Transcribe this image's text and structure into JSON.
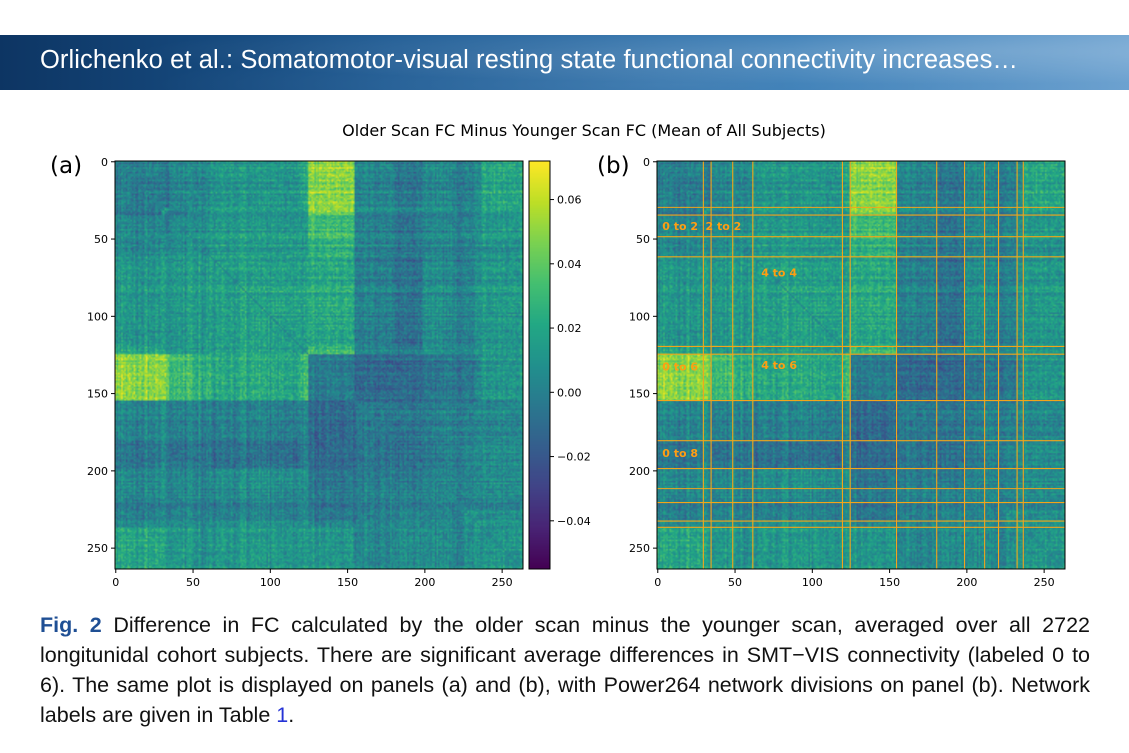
{
  "header": {
    "title": "Orlichenko et al.: Somatomotor-visual resting state functional connectivity increases…"
  },
  "colors": {
    "header_gradient": [
      "#0d3563",
      "#2f76b2",
      "#6aa0cf"
    ],
    "caption_label": "#1f4f94",
    "reference_link": "#2533d6",
    "network_lines": "#f2a51a",
    "network_labels": "#ff9e12"
  },
  "figure": {
    "suptitle": "Older Scan FC Minus Younger Scan FC (Mean of All Subjects)",
    "panel_a_label": "(a)",
    "panel_b_label": "(b)"
  },
  "chart_data": [
    {
      "type": "heatmap",
      "panel": "(a)",
      "description_source": "Power264 ROI-by-ROI FC difference matrix",
      "matrix_size": 264,
      "colormap": "viridis",
      "clim": [
        -0.055,
        0.072
      ],
      "x_ticks": [
        0,
        50,
        100,
        150,
        200,
        250
      ],
      "y_ticks": [
        0,
        50,
        100,
        150,
        200,
        250
      ],
      "colorbar_ticks": [
        0.06,
        0.04,
        0.02,
        0.0,
        -0.02,
        -0.04
      ],
      "colorbar_tick_labels": [
        "0.06",
        "0.04",
        "0.02",
        "0.00",
        "−0.02",
        "−0.04"
      ],
      "network_boundaries": [
        30,
        35,
        49,
        62,
        120,
        125,
        155,
        181,
        199,
        212,
        221,
        233,
        237
      ],
      "block_values": [
        [
          0.0,
          -0.006,
          0.004,
          0.004,
          0.012,
          0.018,
          0.05,
          0.004,
          -0.006,
          0.006,
          0.004,
          0.0,
          0.004,
          0.02
        ],
        [
          -0.006,
          0.004,
          -0.004,
          0.002,
          0.01,
          0.012,
          0.044,
          0.004,
          -0.004,
          0.004,
          0.002,
          -0.002,
          0.002,
          0.012
        ],
        [
          0.004,
          -0.004,
          0.006,
          0.006,
          0.012,
          0.01,
          0.03,
          0.0,
          -0.008,
          0.004,
          0.002,
          0.0,
          0.004,
          0.012
        ],
        [
          0.004,
          0.002,
          0.006,
          0.008,
          0.014,
          0.012,
          0.026,
          0.002,
          -0.006,
          0.004,
          0.002,
          0.0,
          0.004,
          0.01
        ],
        [
          0.012,
          0.01,
          0.012,
          0.014,
          0.016,
          0.014,
          0.02,
          0.0,
          -0.01,
          0.008,
          0.004,
          0.0,
          0.006,
          0.012
        ],
        [
          0.018,
          0.012,
          0.01,
          0.012,
          0.014,
          0.012,
          0.028,
          0.002,
          -0.004,
          0.006,
          0.004,
          0.002,
          0.006,
          0.01
        ],
        [
          0.05,
          0.044,
          0.03,
          0.026,
          0.02,
          0.028,
          -0.004,
          -0.012,
          -0.014,
          -0.006,
          -0.004,
          -0.006,
          0.0,
          0.01
        ],
        [
          0.004,
          0.004,
          0.0,
          0.002,
          0.0,
          0.002,
          -0.012,
          -0.002,
          -0.006,
          0.0,
          0.002,
          0.0,
          0.002,
          0.004
        ],
        [
          -0.006,
          -0.004,
          -0.008,
          -0.006,
          -0.01,
          -0.004,
          -0.014,
          -0.006,
          -0.012,
          -0.004,
          -0.002,
          -0.002,
          0.0,
          0.004
        ],
        [
          0.006,
          0.004,
          0.004,
          0.004,
          0.008,
          0.006,
          -0.006,
          0.0,
          -0.004,
          0.004,
          0.004,
          0.002,
          0.004,
          0.008
        ],
        [
          0.004,
          0.002,
          0.002,
          0.002,
          0.004,
          0.004,
          -0.004,
          0.002,
          -0.002,
          0.004,
          0.006,
          0.002,
          0.004,
          0.006
        ],
        [
          0.0,
          -0.002,
          0.0,
          0.0,
          0.0,
          0.002,
          -0.006,
          0.0,
          -0.002,
          0.002,
          0.002,
          0.004,
          0.002,
          0.004
        ],
        [
          0.004,
          0.002,
          0.004,
          0.004,
          0.006,
          0.006,
          0.0,
          0.002,
          0.0,
          0.004,
          0.004,
          0.002,
          0.006,
          0.006
        ],
        [
          0.02,
          0.012,
          0.012,
          0.01,
          0.012,
          0.01,
          0.01,
          0.004,
          0.004,
          0.008,
          0.006,
          0.004,
          0.006,
          0.01
        ]
      ]
    },
    {
      "type": "heatmap",
      "panel": "(b)",
      "matrix_size": 264,
      "x_ticks": [
        0,
        50,
        100,
        150,
        200,
        250
      ],
      "y_ticks": [
        0,
        50,
        100,
        150,
        200,
        250
      ],
      "network_boundaries": [
        30,
        35,
        49,
        62,
        120,
        125,
        155,
        181,
        199,
        212,
        221,
        233,
        237
      ],
      "annotations": [
        {
          "text": "0 to 2",
          "x": 15,
          "y": 42
        },
        {
          "text": "2 to 2",
          "x": 43,
          "y": 42
        },
        {
          "text": "4 to 4",
          "x": 79,
          "y": 72
        },
        {
          "text": "0 to 6",
          "x": 15,
          "y": 133
        },
        {
          "text": "4 to 6",
          "x": 79,
          "y": 132
        },
        {
          "text": "0 to 8",
          "x": 15,
          "y": 189
        }
      ]
    }
  ],
  "caption": {
    "label": "Fig. 2",
    "text_before_ref": " Difference in FC calculated by the older scan minus the younger scan, averaged over all 2722 longitunidal cohort subjects. There are significant average differences in SMT−VIS connectivity (labeled 0 to 6). The same plot is displayed on panels (a) and (b), with Power264 network divisions on panel (b). Network labels are given in Table ",
    "ref": "1",
    "text_after_ref": "."
  }
}
